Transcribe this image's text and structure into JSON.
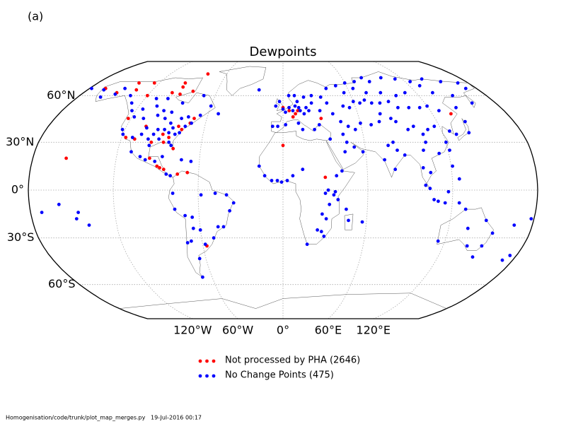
{
  "chart_data": {
    "type": "map",
    "projection": "robinson",
    "panel_label": "(a)",
    "title": "Dewpoints",
    "lat_ticks": [
      {
        "value": 60,
        "label": "60°N"
      },
      {
        "value": 30,
        "label": "30°N"
      },
      {
        "value": 0,
        "label": "0°"
      },
      {
        "value": -30,
        "label": "30°S"
      },
      {
        "value": -60,
        "label": "60°S"
      }
    ],
    "lon_ticks": [
      {
        "value": -120,
        "label": "120°W"
      },
      {
        "value": -60,
        "label": "60°W"
      },
      {
        "value": 0,
        "label": "0°"
      },
      {
        "value": 60,
        "label": "60°E"
      },
      {
        "value": 120,
        "label": "120°E"
      }
    ],
    "grid": true,
    "series": [
      {
        "name": "Not processed by PHA (2646)",
        "color": "#ff0000",
        "lon": [
          -156,
          -165,
          -140,
          -150,
          -135,
          -125,
          -95,
          -94,
          -80,
          -82,
          -92,
          -100,
          -120,
          -122,
          -117,
          -105,
          -97,
          -90,
          -85,
          -80,
          -88,
          -96,
          -90,
          -88,
          -85,
          -75,
          -77,
          -72,
          -70,
          -80,
          -110,
          -57,
          -68,
          0,
          5,
          10,
          12,
          8,
          30,
          0,
          30,
          135
        ],
        "lat": [
          20,
          65,
          69,
          62,
          64,
          69,
          69,
          66,
          76,
          63,
          61,
          62,
          60,
          45,
          33,
          40,
          30,
          35,
          33,
          26,
          30,
          20,
          15,
          14,
          13,
          10,
          38,
          42,
          45,
          40,
          32,
          -35,
          11,
          52,
          50,
          48,
          50,
          46,
          45,
          28,
          8,
          48
        ]
      },
      {
        "name": "No Change Points (475)",
        "color": "#0000ff",
        "lon": [
          -178,
          -165,
          -160,
          -150,
          -147,
          -135,
          -128,
          -123,
          -115,
          -105,
          -97,
          -90,
          -80,
          -75,
          -66,
          -60,
          -110,
          -100,
          -85,
          -70,
          -52,
          -22,
          -122,
          -120,
          -112,
          -106,
          -104,
          -100,
          -97,
          -95,
          -93,
          -90,
          -87,
          -84,
          -84,
          -82,
          -81,
          -78,
          -75,
          -71,
          -110,
          -118,
          -100,
          -98,
          -92,
          -86,
          -110,
          -103,
          -99,
          -92,
          -87,
          -83,
          -80,
          -73,
          -66,
          -172,
          -159,
          -146,
          -148,
          -140,
          -77,
          -78,
          -70,
          -65,
          -58,
          -48,
          -40,
          -35,
          -38,
          -43,
          -47,
          -51,
          -58,
          -65,
          -68,
          -71,
          -65,
          -68,
          -60,
          0,
          2,
          5,
          8,
          10,
          13,
          14,
          17,
          19,
          21,
          24,
          25,
          18,
          10,
          5,
          12,
          -6,
          -3,
          -8,
          -4,
          2,
          12,
          15,
          24,
          28,
          30,
          37,
          40,
          45,
          33,
          50,
          55,
          60,
          65,
          70,
          75,
          82,
          90,
          95,
          104,
          113,
          120,
          127,
          143,
          150,
          160,
          170,
          135,
          130,
          110,
          100,
          88,
          75,
          65,
          70,
          85,
          100,
          113,
          125,
          140,
          155,
          170,
          40,
          50,
          55,
          80,
          60,
          50,
          60,
          68,
          75,
          78,
          85,
          55,
          45,
          35,
          47,
          52,
          58,
          45,
          73,
          77,
          80,
          88,
          83,
          81,
          100,
          105,
          110,
          116,
          120,
          113,
          105,
          102,
          95,
          88,
          126,
          130,
          140,
          142,
          121,
          100,
          105,
          101,
          104,
          110,
          117,
          125,
          121,
          107,
          115,
          125,
          115,
          130,
          149,
          153,
          146,
          138,
          147,
          175,
          172,
          167,
          178,
          134,
          -17,
          -13,
          -8,
          -4,
          -1,
          3,
          7,
          14,
          32,
          37,
          39,
          30,
          33,
          28,
          31,
          25,
          28,
          30,
          18,
          47,
          57,
          45,
          36,
          38,
          42
        ],
        "lat": [
          65,
          64,
          59,
          61,
          65,
          60,
          55,
          50,
          51,
          53,
          50,
          49,
          45,
          46,
          47,
          53,
          58,
          58,
          55,
          60,
          48,
          64,
          38,
          35,
          33,
          35,
          39,
          32,
          35,
          38,
          45,
          38,
          42,
          39,
          30,
          28,
          35,
          36,
          40,
          42,
          45,
          46,
          47,
          28,
          32,
          36,
          24,
          21,
          19,
          18,
          21,
          10,
          9,
          19,
          18,
          -14,
          -9,
          -14,
          -18,
          -22,
          -12,
          -2,
          -16,
          -17,
          -3,
          -2,
          -3,
          -8,
          -13,
          -23,
          -23,
          -30,
          -34,
          -24,
          -32,
          -33,
          -43,
          -55,
          -25,
          51,
          49,
          52,
          50,
          53,
          52,
          50,
          48,
          52,
          50,
          55,
          60,
          59,
          60,
          60,
          56,
          53,
          56,
          40,
          40,
          41,
          42,
          38,
          38,
          41,
          50,
          55,
          48,
          43,
          59,
          53,
          52,
          56,
          55,
          57,
          55,
          55,
          56,
          52,
          52,
          52,
          53,
          50,
          52,
          60,
          55,
          65,
          62,
          67,
          62,
          60,
          62,
          62,
          65,
          70,
          70,
          73,
          72,
          70,
          72,
          70,
          69,
          65,
          67,
          62,
          73,
          69,
          40,
          42,
          41,
          43,
          48,
          45,
          38,
          35,
          32,
          30,
          27,
          24,
          24,
          19,
          28,
          13,
          22,
          25,
          30,
          40,
          35,
          38,
          40,
          30,
          23,
          30,
          25,
          38,
          43,
          37,
          35,
          36,
          43,
          25,
          14,
          11,
          3,
          1,
          -7,
          -1,
          7,
          15,
          -6,
          -8,
          -8,
          -32,
          -12,
          -35,
          -27,
          -19,
          -35,
          -42,
          -41,
          -44,
          -22,
          -18,
          -24,
          15,
          9,
          6,
          6,
          5,
          6,
          9,
          13,
          0,
          -1,
          -6,
          -2,
          -9,
          -15,
          -18,
          -25,
          -26,
          -29,
          -34,
          -19,
          -20,
          -12,
          -3,
          9,
          12
        ]
      }
    ],
    "footer": "Homogenisation/code/trunk/plot_map_merges.py   19-Jul-2016 00:17"
  }
}
